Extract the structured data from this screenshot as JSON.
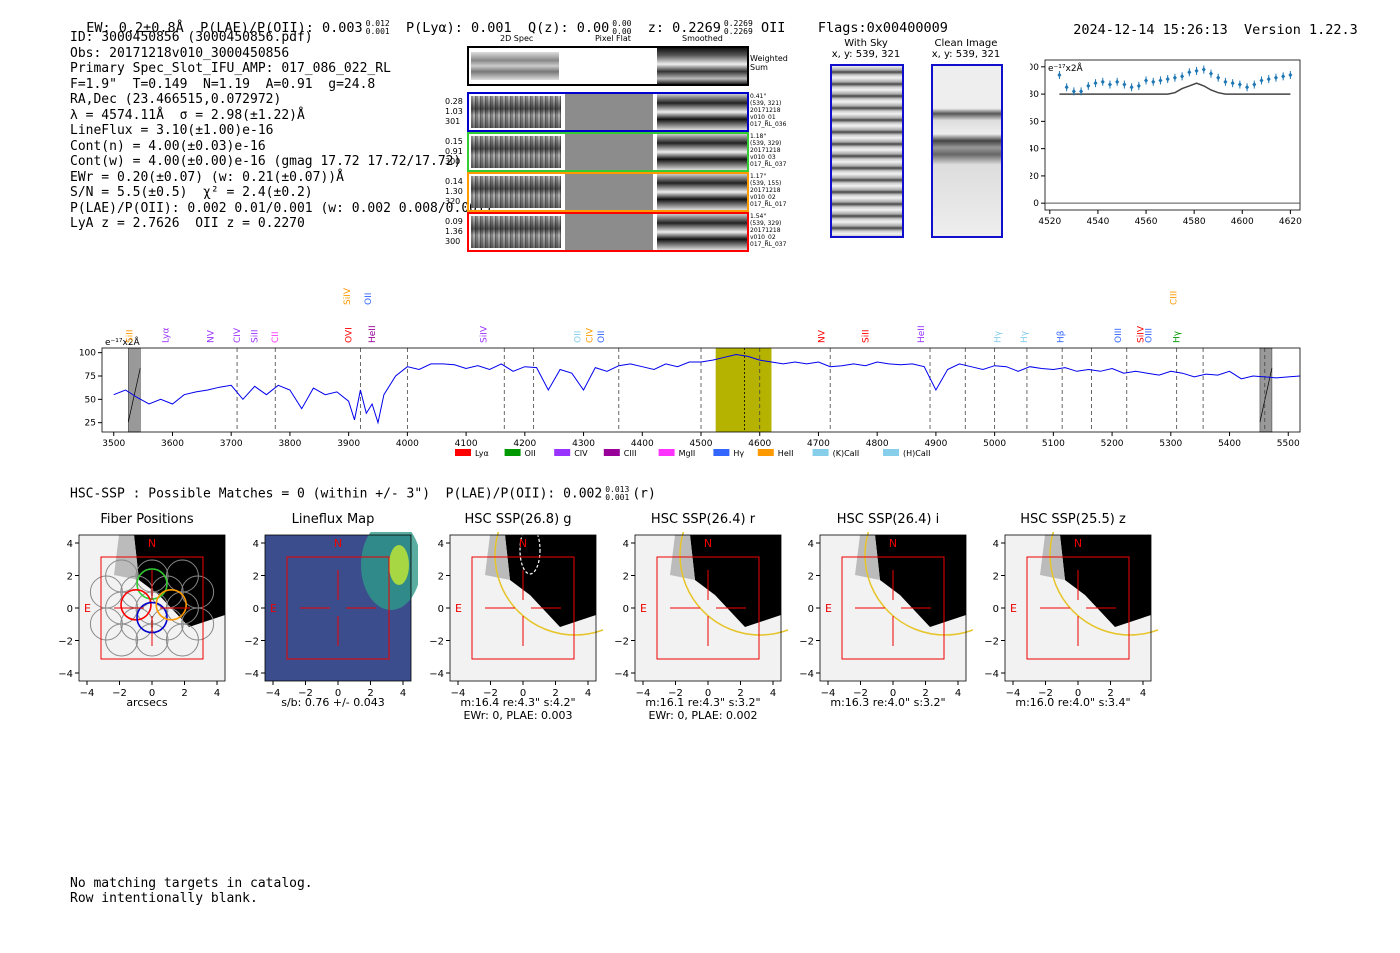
{
  "header": {
    "ew": "EW: 0.2±0.8Å",
    "plae": "P(LAE)/P(OII): 0.003",
    "plae_sup": "0.012",
    "plae_sub": "0.001",
    "plya": "P(Lyα): 0.001",
    "qz": "Q(z): 0.00",
    "qz_sup": "0.00",
    "qz_sub": "0.00",
    "z": "z: 0.2269",
    "z_sup": "0.2269",
    "z_sub": "0.2269",
    "z_line": "OII",
    "flags": "Flags:0x00400009",
    "timestamp": "2024-12-14 15:26:13",
    "version": "Version 1.22.3"
  },
  "info_lines": [
    "ID: 3000450856 (3000450856.pdf)",
    "Obs: 20171218v010_3000450856",
    "Primary Spec_Slot_IFU_AMP: 017_086_022_RL",
    "F=1.9\"  T=0.149  N=1.19  A=0.91  g=24.8",
    "RA,Dec (23.466515,0.072972)",
    "λ = 4574.11Å  σ = 2.98(±1.22)Å",
    "LineFlux = 3.10(±1.00)e-16",
    "Cont(n) = 4.00(±0.03)e-16",
    "Cont(w) = 4.00(±0.00)e-16 (gmag 17.72 17.72/17.72)",
    "EWr = 0.20(±0.07) (w: 0.21(±0.07))Å",
    "S/N = 5.5(±0.5)  χ² = 2.4(±0.2)",
    "P(LAE)/P(OII): 0.002 0.01/0.001 (w: 0.002 0.008/0.001)",
    "LyA z = 2.7626  OII z = 0.2270"
  ],
  "cutouts": {
    "col_headers": [
      "2D Spec",
      "Pixel Flat",
      "Smoothed"
    ],
    "weighted_label": "Weighted Sum",
    "rows": [
      {
        "left": [
          "0.28",
          "1.03",
          "301"
        ],
        "right": [
          "0.41\"",
          "(539, 321)",
          "20171218",
          "v010_01",
          "017_RL_036"
        ],
        "color": "#0000cc"
      },
      {
        "left": [
          "0.15",
          "0.91",
          "300"
        ],
        "right": [
          "1.18\"",
          "(539, 329)",
          "20171218",
          "v010_03",
          "017_RL_037"
        ],
        "color": "#33cc33"
      },
      {
        "left": [
          "0.14",
          "1.30",
          "320"
        ],
        "right": [
          "1.17\"",
          "(539, 155)",
          "20171218",
          "v010_02",
          "017_RL_017"
        ],
        "color": "#ff9900"
      },
      {
        "left": [
          "0.09",
          "1.36",
          "300"
        ],
        "right": [
          "1.54\"",
          "(539, 329)",
          "20171218",
          "v010_02",
          "017_RL_037"
        ],
        "color": "#ff0000"
      }
    ]
  },
  "sky_panels": {
    "with_sky_title": "With Sky",
    "with_sky_sub": "x, y: 539, 321",
    "clean_title": "Clean Image",
    "clean_sub": "x, y: 539, 321"
  },
  "zoom_plot": {
    "unit_label": "e⁻¹⁷x2Å",
    "xticks": [
      4520,
      4540,
      4560,
      4580,
      4600,
      4620
    ],
    "yticks": [
      0,
      20,
      40,
      60,
      80,
      100
    ]
  },
  "spectrum": {
    "unit_label": "e⁻¹⁷x2Å",
    "xticks": [
      3500,
      3600,
      3700,
      3800,
      3900,
      4000,
      4100,
      4200,
      4300,
      4400,
      4500,
      4600,
      4700,
      4800,
      4900,
      5000,
      5100,
      5200,
      5300,
      5400,
      5500
    ],
    "yticks": [
      25,
      50,
      75,
      100
    ],
    "lines": [
      {
        "name": "SiII",
        "x": 3527,
        "color": "#ff9900",
        "tier": 0
      },
      {
        "name": "Lyα",
        "x": 3588,
        "color": "#9933ff",
        "tier": 0
      },
      {
        "name": "NV",
        "x": 3665,
        "color": "#9933ff",
        "tier": 0
      },
      {
        "name": "CIV",
        "x": 3710,
        "color": "#9933ff",
        "tier": 0
      },
      {
        "name": "SiII",
        "x": 3740,
        "color": "#9933ff",
        "tier": 0
      },
      {
        "name": "CII",
        "x": 3775,
        "color": "#ff33ff",
        "tier": 0
      },
      {
        "name": "OVI",
        "x": 3900,
        "color": "#ff0000",
        "tier": 0
      },
      {
        "name": "SiIV",
        "x": 3897,
        "color": "#ff9900",
        "tier": 1
      },
      {
        "name": "OII",
        "x": 3933,
        "color": "#3366ff",
        "tier": 1
      },
      {
        "name": "HeII",
        "x": 3940,
        "color": "#990099",
        "tier": 0
      },
      {
        "name": "SiIV",
        "x": 4130,
        "color": "#9933ff",
        "tier": 0
      },
      {
        "name": "OII",
        "x": 4290,
        "color": "#87ceeb",
        "tier": 0
      },
      {
        "name": "CIV",
        "x": 4310,
        "color": "#ff9900",
        "tier": 0
      },
      {
        "name": "OII",
        "x": 4330,
        "color": "#3366ff",
        "tier": 0
      },
      {
        "name": "NV",
        "x": 4705,
        "color": "#ff0000",
        "tier": 0
      },
      {
        "name": "SiII",
        "x": 4780,
        "color": "#ff0000",
        "tier": 0
      },
      {
        "name": "HeII",
        "x": 4875,
        "color": "#9933ff",
        "tier": 0
      },
      {
        "name": "Hγ",
        "x": 5005,
        "color": "#87ceeb",
        "tier": 0
      },
      {
        "name": "Hγ",
        "x": 5050,
        "color": "#87ceeb",
        "tier": 0
      },
      {
        "name": "Hβ",
        "x": 5112,
        "color": "#3366ff",
        "tier": 0
      },
      {
        "name": "OIII",
        "x": 5210,
        "color": "#3366ff",
        "tier": 0
      },
      {
        "name": "SiIV",
        "x": 5248,
        "color": "#ff0000",
        "tier": 0
      },
      {
        "name": "OIII",
        "x": 5262,
        "color": "#3366ff",
        "tier": 0
      },
      {
        "name": "Hγ",
        "x": 5310,
        "color": "#009900",
        "tier": 0
      },
      {
        "name": "CIII",
        "x": 5305,
        "color": "#ff9900",
        "tier": 2
      }
    ],
    "legend": [
      {
        "label": "Lyα",
        "color": "#ff0000"
      },
      {
        "label": "OII",
        "color": "#009900"
      },
      {
        "label": "CIV",
        "color": "#9933ff"
      },
      {
        "label": "CIII",
        "color": "#990099"
      },
      {
        "label": "MgII",
        "color": "#ff33ff"
      },
      {
        "label": "Hγ",
        "color": "#3366ff"
      },
      {
        "label": "HeII",
        "color": "#ff9900"
      },
      {
        "label": "(K)CaII",
        "color": "#87ceeb"
      },
      {
        "label": "(H)CaII",
        "color": "#87ceeb"
      }
    ]
  },
  "hsc": {
    "title": "HSC-SSP : Possible Matches = 0 (within +/- 3\")  P(LAE)/P(OII): 0.002",
    "title_sup": "0.013",
    "title_sub": "0.001",
    "title_tail": "(r)",
    "axis_ticks": [
      "−4",
      "−2",
      "0",
      "2",
      "4"
    ],
    "y_ticks": [
      "4",
      "2",
      "0",
      "−2",
      "−4"
    ],
    "north": "N",
    "east": "E",
    "stamps": [
      {
        "title": "Fiber Positions",
        "line1": "arcsecs",
        "line2": ""
      },
      {
        "title": "Lineflux Map",
        "line1": "s/b: 0.76 +/- 0.043",
        "line2": ""
      },
      {
        "title": "HSC SSP(26.8) g",
        "line1": "m:16.4  re:4.3\"  s:4.2\"",
        "line2": "EWr: 0, PLAE: 0.003"
      },
      {
        "title": "HSC SSP(26.4) r",
        "line1": "m:16.1  re:4.3\"  s:3.2\"",
        "line2": "EWr: 0, PLAE: 0.002"
      },
      {
        "title": "HSC SSP(26.4) i",
        "line1": "m:16.3  re:4.0\"  s:3.2\"",
        "line2": ""
      },
      {
        "title": "HSC SSP(25.5) z",
        "line1": "m:16.0  re:4.0\"  s:3.4\"",
        "line2": ""
      }
    ]
  },
  "footer": {
    "line1": "No matching targets in catalog.",
    "line2": "Row intentionally blank."
  },
  "chart_data": [
    {
      "type": "line",
      "title": "",
      "xlabel": "",
      "ylabel": "e⁻¹⁷x2Å",
      "xlim": [
        3480,
        5520
      ],
      "ylim": [
        15,
        105
      ],
      "highlight_band": [
        4525,
        4620
      ],
      "line_center": 4574,
      "dashed_lines": [
        3710,
        3775,
        3920,
        4000,
        4165,
        4215,
        4360,
        4500,
        4600,
        4720,
        4890,
        4950,
        5000,
        5055,
        5115,
        5165,
        5225,
        5310,
        5355,
        5460
      ],
      "x": [
        3500,
        3520,
        3540,
        3560,
        3580,
        3600,
        3620,
        3640,
        3660,
        3680,
        3700,
        3720,
        3740,
        3760,
        3780,
        3800,
        3820,
        3840,
        3860,
        3880,
        3900,
        3910,
        3920,
        3930,
        3940,
        3950,
        3960,
        3980,
        4000,
        4020,
        4040,
        4060,
        4080,
        4100,
        4120,
        4140,
        4160,
        4180,
        4200,
        4220,
        4240,
        4260,
        4280,
        4300,
        4320,
        4340,
        4360,
        4380,
        4400,
        4420,
        4440,
        4460,
        4480,
        4500,
        4520,
        4540,
        4560,
        4580,
        4600,
        4620,
        4640,
        4660,
        4680,
        4700,
        4720,
        4740,
        4760,
        4780,
        4800,
        4820,
        4840,
        4860,
        4880,
        4900,
        4920,
        4940,
        4960,
        4980,
        5000,
        5020,
        5040,
        5060,
        5080,
        5100,
        5120,
        5140,
        5160,
        5180,
        5200,
        5220,
        5240,
        5260,
        5280,
        5300,
        5320,
        5340,
        5360,
        5380,
        5400,
        5420,
        5440,
        5460,
        5480,
        5500,
        5520
      ],
      "y": [
        55,
        60,
        52,
        45,
        50,
        45,
        55,
        58,
        60,
        63,
        65,
        50,
        64,
        55,
        65,
        60,
        40,
        62,
        55,
        58,
        48,
        28,
        60,
        35,
        45,
        25,
        55,
        75,
        85,
        82,
        88,
        88,
        87,
        83,
        86,
        82,
        88,
        80,
        85,
        84,
        60,
        82,
        78,
        60,
        84,
        80,
        86,
        88,
        85,
        82,
        88,
        85,
        90,
        90,
        92,
        95,
        98,
        96,
        92,
        90,
        88,
        90,
        88,
        90,
        85,
        86,
        88,
        86,
        90,
        88,
        87,
        88,
        85,
        60,
        82,
        88,
        85,
        82,
        86,
        85,
        80,
        85,
        83,
        82,
        84,
        80,
        82,
        80,
        83,
        78,
        80,
        78,
        76,
        80,
        78,
        74,
        77,
        76,
        80,
        72,
        75,
        74,
        73,
        74,
        75
      ]
    },
    {
      "type": "scatter",
      "title": "",
      "ylabel": "e⁻¹⁷x2Å",
      "xlim": [
        4518,
        4624
      ],
      "ylim": [
        -5,
        105
      ],
      "x": [
        4524,
        4527,
        4530,
        4533,
        4536,
        4539,
        4542,
        4545,
        4548,
        4551,
        4554,
        4557,
        4560,
        4563,
        4566,
        4569,
        4572,
        4575,
        4578,
        4581,
        4584,
        4587,
        4590,
        4593,
        4596,
        4599,
        4602,
        4605,
        4608,
        4611,
        4614,
        4617,
        4620
      ],
      "y": [
        94,
        85,
        82,
        82,
        86,
        88,
        89,
        87,
        89,
        87,
        85,
        86,
        90,
        89,
        90,
        91,
        92,
        93,
        96,
        97,
        98,
        95,
        92,
        89,
        88,
        87,
        85,
        87,
        90,
        91,
        92,
        93,
        94
      ],
      "model_y": [
        80,
        80,
        80,
        80,
        80,
        80,
        80,
        80,
        80,
        80,
        80,
        80,
        80,
        80,
        80,
        80,
        81,
        84,
        86,
        88,
        86,
        83,
        81,
        80,
        80,
        80,
        80,
        80,
        80,
        80,
        80,
        80,
        80
      ]
    }
  ]
}
